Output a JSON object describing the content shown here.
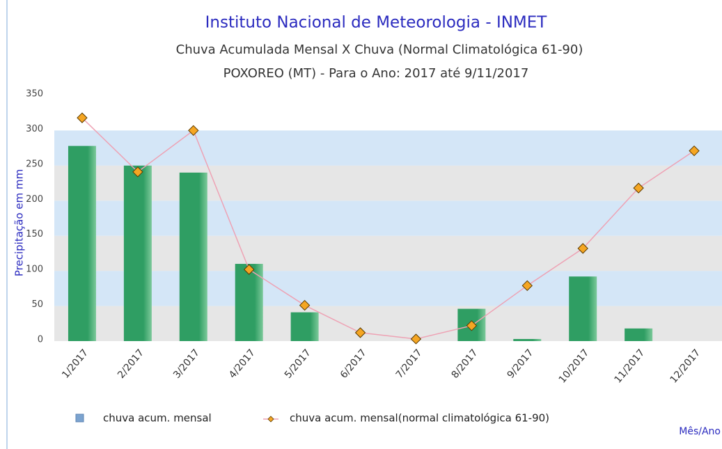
{
  "chart_data": {
    "type": "bar_line",
    "title": "Instituto Nacional de Meteorologia - INMET",
    "subtitle": "Chuva Acumulada Mensal X Chuva (Normal Climatológica 61-90)",
    "subtitle2": "POXOREO (MT) - Para o Ano: 2017 até 9/11/2017",
    "y_label": "Precipitação em mm",
    "x_label": "Mês/Ano",
    "categories": [
      "1/2017",
      "2/2017",
      "3/2017",
      "4/2017",
      "5/2017",
      "6/2017",
      "7/2017",
      "8/2017",
      "9/2017",
      "10/2017",
      "11/2017",
      "12/2017"
    ],
    "series": [
      {
        "name": "chuva acum. mensal",
        "kind": "bar",
        "color": "#2f9e63",
        "legend_color": "#7ba3cf",
        "values": [
          278,
          250,
          240,
          110,
          41,
          0,
          0,
          46,
          3,
          92,
          18,
          0
        ]
      },
      {
        "name": "chuva acum. mensal(normal climatológica 61-90)",
        "kind": "line",
        "color": "#eea2b4",
        "marker_color": "#f5a623",
        "values": [
          318,
          241,
          300,
          102,
          51,
          12,
          3,
          22,
          79,
          132,
          218,
          271
        ]
      }
    ],
    "ylim": [
      0,
      350
    ],
    "yticks": [
      0,
      50,
      100,
      150,
      200,
      250,
      300,
      350
    ],
    "band_colors": [
      "#e6e6e6",
      "#d4e6f7"
    ]
  }
}
